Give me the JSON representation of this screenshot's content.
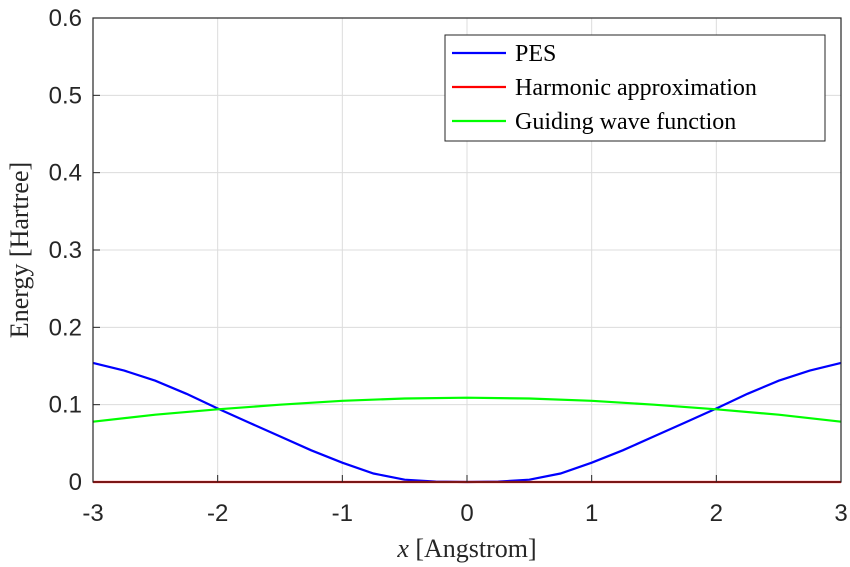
{
  "chart_data": {
    "type": "line",
    "title": "",
    "xlabel_italic": "x",
    "xlabel_rest": " [Angstrom]",
    "ylabel": "Energy [Hartree]",
    "xlim": [
      -3,
      3
    ],
    "ylim": [
      0,
      0.6
    ],
    "xticks": [
      -3,
      -2,
      -1,
      0,
      1,
      2,
      3
    ],
    "yticks": [
      0,
      0.1,
      0.2,
      0.3,
      0.4,
      0.5,
      0.6
    ],
    "ytick_labels": [
      "0",
      "0.1",
      "0.2",
      "0.3",
      "0.4",
      "0.5",
      "0.6"
    ],
    "grid": true,
    "legend_position": "top-right",
    "series": [
      {
        "name": "PES",
        "color": "#0000ff",
        "x": [
          -3,
          -2.75,
          -2.5,
          -2.25,
          -2,
          -1.75,
          -1.5,
          -1.25,
          -1,
          -0.75,
          -0.5,
          -0.25,
          0,
          0.25,
          0.5,
          0.75,
          1,
          1.25,
          1.5,
          1.75,
          2,
          2.25,
          2.5,
          2.75,
          3
        ],
        "y": [
          0.154,
          0.144,
          0.131,
          0.114,
          0.095,
          0.077,
          0.059,
          0.041,
          0.025,
          0.011,
          0.003,
          0.0005,
          0,
          0.0005,
          0.003,
          0.011,
          0.025,
          0.041,
          0.059,
          0.077,
          0.095,
          0.114,
          0.131,
          0.144,
          0.154
        ]
      },
      {
        "name": "Harmonic approximation",
        "color": "#ff0000",
        "x": [
          -3,
          3
        ],
        "y": [
          0,
          0
        ]
      },
      {
        "name": "Guiding wave function",
        "color": "#00ff00",
        "x": [
          -3,
          -2.5,
          -2,
          -1.5,
          -1,
          -0.5,
          0,
          0.5,
          1,
          1.5,
          2,
          2.5,
          3
        ],
        "y": [
          0.078,
          0.087,
          0.094,
          0.1,
          0.105,
          0.108,
          0.109,
          0.108,
          0.105,
          0.1,
          0.094,
          0.087,
          0.078
        ]
      }
    ]
  }
}
